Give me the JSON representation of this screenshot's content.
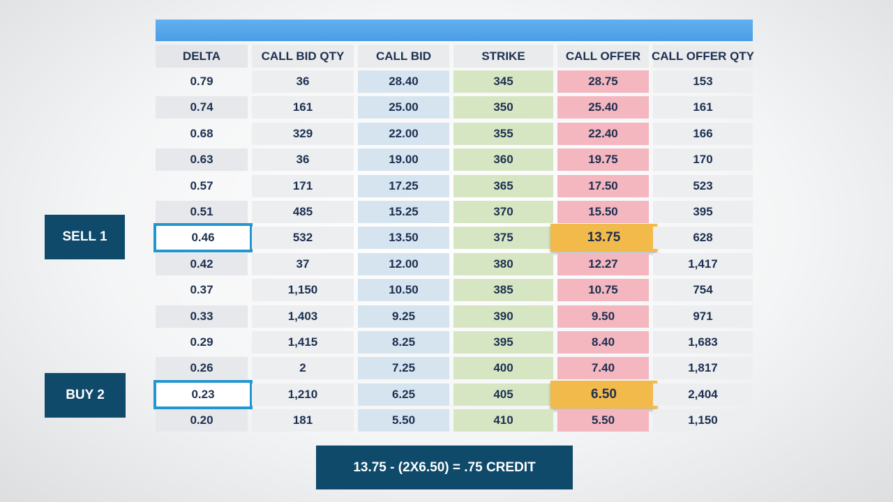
{
  "table": {
    "headers": [
      "DELTA",
      "CALL BID QTY",
      "CALL BID",
      "STRIKE",
      "CALL OFFER",
      "CALL OFFER QTY"
    ],
    "rows": [
      [
        "0.79",
        "36",
        "28.40",
        "345",
        "28.75",
        "153"
      ],
      [
        "0.74",
        "161",
        "25.00",
        "350",
        "25.40",
        "161"
      ],
      [
        "0.68",
        "329",
        "22.00",
        "355",
        "22.40",
        "166"
      ],
      [
        "0.63",
        "36",
        "19.00",
        "360",
        "19.75",
        "170"
      ],
      [
        "0.57",
        "171",
        "17.25",
        "365",
        "17.50",
        "523"
      ],
      [
        "0.51",
        "485",
        "15.25",
        "370",
        "15.50",
        "395"
      ],
      [
        "0.46",
        "532",
        "13.50",
        "375",
        "13.75",
        "628"
      ],
      [
        "0.42",
        "37",
        "12.00",
        "380",
        "12.27",
        "1,417"
      ],
      [
        "0.37",
        "1,150",
        "10.50",
        "385",
        "10.75",
        "754"
      ],
      [
        "0.33",
        "1,403",
        "9.25",
        "390",
        "9.50",
        "971"
      ],
      [
        "0.29",
        "1,415",
        "8.25",
        "395",
        "8.40",
        "1,683"
      ],
      [
        "0.26",
        "2",
        "7.25",
        "400",
        "7.40",
        "1,817"
      ],
      [
        "0.23",
        "1,210",
        "6.25",
        "405",
        "6.50",
        "2,404"
      ],
      [
        "0.20",
        "181",
        "5.50",
        "410",
        "5.50",
        "1,150"
      ]
    ],
    "highlighted_rows": [
      6,
      12
    ]
  },
  "labels": {
    "sell": "SELL 1",
    "buy": "BUY 2"
  },
  "formula": "13.75 - (2X6.50) = .75 CREDIT",
  "colors": {
    "header_bar": "#4a9de6",
    "call_bid": "#d6e4f0",
    "strike": "#d6e6c3",
    "call_offer": "#f4b6bf",
    "highlight_offer": "#f2b94b",
    "highlight_border": "#2496cf",
    "tag_bg": "#0f4a6b"
  }
}
